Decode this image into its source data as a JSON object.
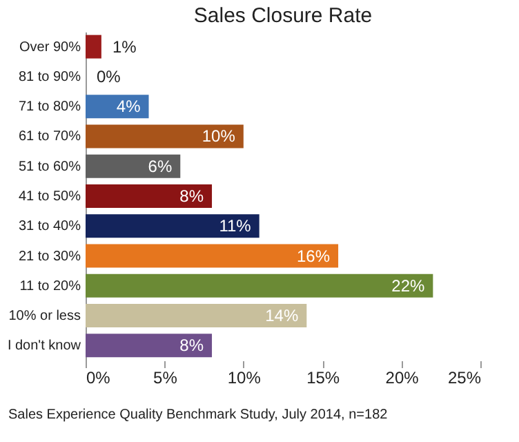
{
  "chart_data": {
    "type": "bar",
    "orientation": "horizontal",
    "title": "Sales Closure Rate",
    "categories": [
      "Over 90%",
      "81 to 90%",
      "71 to 80%",
      "61 to 70%",
      "51 to 60%",
      "41 to 50%",
      "31 to 40%",
      "21 to 30%",
      "11 to 20%",
      "10% or less",
      "I don't know"
    ],
    "values": [
      1,
      0,
      4,
      10,
      6,
      8,
      11,
      16,
      22,
      14,
      8
    ],
    "value_labels": [
      "1%",
      "0%",
      "4%",
      "10%",
      "6%",
      "8%",
      "11%",
      "16%",
      "22%",
      "14%",
      "8%"
    ],
    "colors": [
      "#9b1b1b",
      "#9b1b1b",
      "#3f74b5",
      "#a8541a",
      "#5f5f5f",
      "#8b1414",
      "#14245c",
      "#e6761e",
      "#6b8a35",
      "#c8bf9c",
      "#6e4f8b"
    ],
    "xlim": [
      0,
      25
    ],
    "xticks": [
      {
        "value": 0,
        "label": "0%"
      },
      {
        "value": 5,
        "label": "5%"
      },
      {
        "value": 10,
        "label": "10%"
      },
      {
        "value": 15,
        "label": "15%"
      },
      {
        "value": 20,
        "label": "20%"
      },
      {
        "value": 25,
        "label": "25%"
      }
    ],
    "annotations": [
      "Sales Experience Quality Benchmark Study, July 2014, n=182"
    ],
    "grid": false
  }
}
